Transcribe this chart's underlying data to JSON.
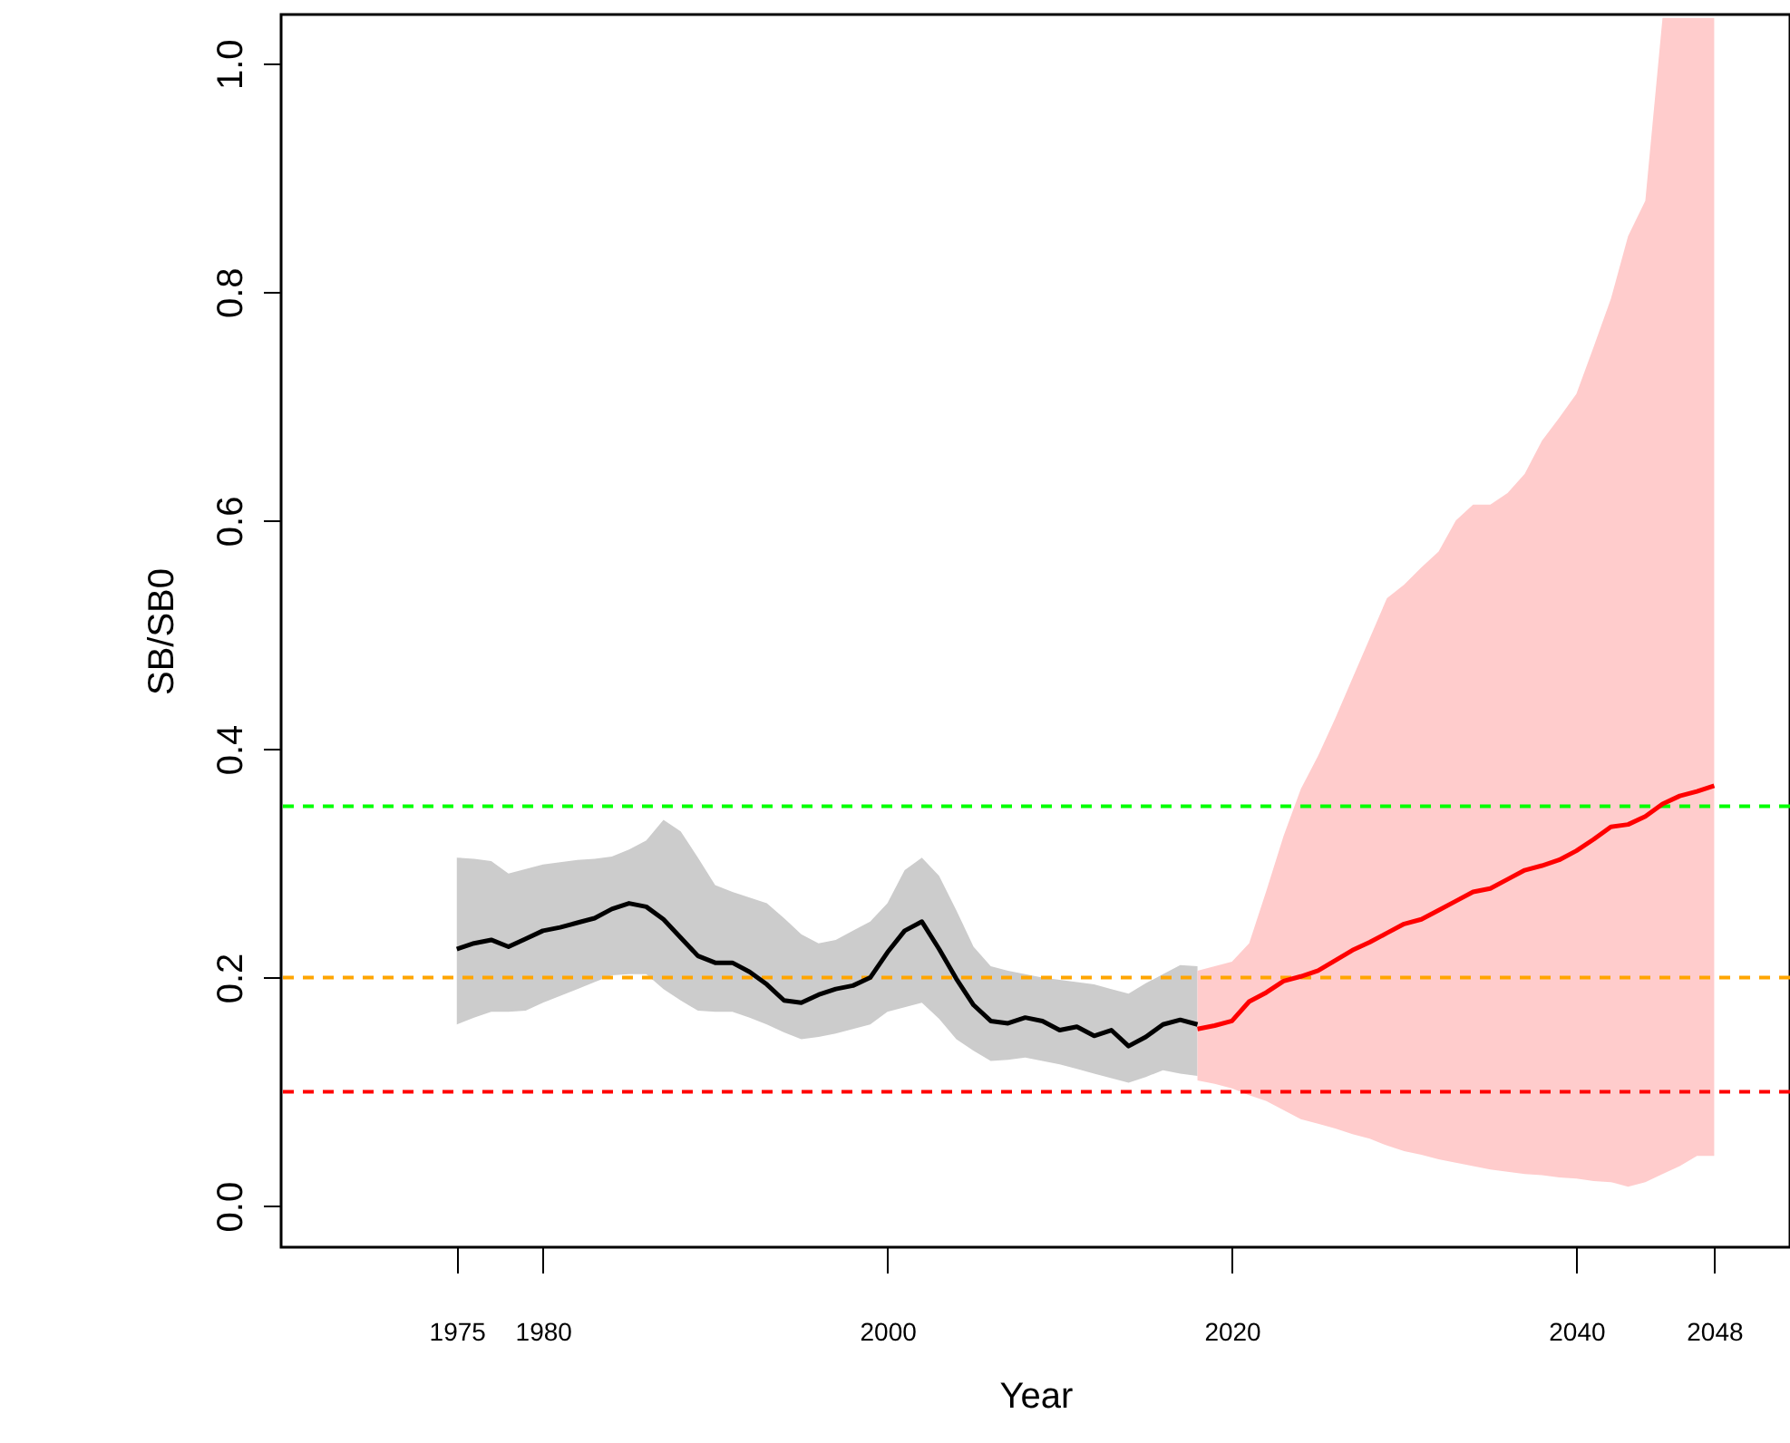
{
  "chart_data": {
    "type": "line",
    "xlabel": "Year",
    "ylabel": "SB/SB0",
    "xlim": [
      1964.8,
      2052.4
    ],
    "ylim": [
      -0.036,
      1.043
    ],
    "xticks": [
      1975,
      1980,
      2000,
      2020,
      2040,
      2048
    ],
    "yticks": [
      {
        "value": 0,
        "label": "0.0"
      },
      {
        "value": 0.2,
        "label": "0.2"
      },
      {
        "value": 0.4,
        "label": "0.4"
      },
      {
        "value": 0.6,
        "label": "0.6"
      },
      {
        "value": 0.8,
        "label": "0.8"
      },
      {
        "value": 1,
        "label": "1.0"
      }
    ],
    "grid": false,
    "line_style": "solid",
    "marker": "none",
    "series": [
      {
        "color": "#000000",
        "x": [
          1975,
          1976,
          1977,
          1978,
          1979,
          1980,
          1981,
          1982,
          1983,
          1984,
          1985,
          1986,
          1987,
          1988,
          1989,
          1990,
          1991,
          1992,
          1993,
          1994,
          1995,
          1996,
          1997,
          1998,
          1999,
          2000,
          2001,
          2002,
          2003,
          2004,
          2005,
          2006,
          2007,
          2008,
          2009,
          2010,
          2011,
          2012,
          2013,
          2014,
          2015,
          2016,
          2017,
          2018
        ],
        "values": [
          0.225,
          0.23,
          0.233,
          0.227,
          0.234,
          0.241,
          0.244,
          0.248,
          0.252,
          0.26,
          0.265,
          0.262,
          0.251,
          0.235,
          0.219,
          0.213,
          0.213,
          0.205,
          0.194,
          0.18,
          0.178,
          0.185,
          0.19,
          0.193,
          0.2,
          0.222,
          0.241,
          0.249,
          0.225,
          0.199,
          0.176,
          0.162,
          0.16,
          0.165,
          0.162,
          0.154,
          0.157,
          0.149,
          0.154,
          0.14,
          0.148,
          0.159,
          0.163,
          0.159
        ],
        "upper": [
          0.305,
          0.304,
          0.302,
          0.291,
          0.295,
          0.299,
          0.301,
          0.303,
          0.304,
          0.306,
          0.312,
          0.32,
          0.338,
          0.328,
          0.305,
          0.281,
          0.275,
          0.27,
          0.265,
          0.252,
          0.238,
          0.23,
          0.233,
          0.241,
          0.249,
          0.265,
          0.294,
          0.305,
          0.289,
          0.259,
          0.227,
          0.21,
          0.206,
          0.203,
          0.2,
          0.198,
          0.196,
          0.194,
          0.19,
          0.186,
          0.195,
          0.203,
          0.211,
          0.21
        ],
        "lower": [
          0.159,
          0.165,
          0.17,
          0.17,
          0.171,
          0.178,
          0.184,
          0.19,
          0.196,
          0.202,
          0.203,
          0.203,
          0.19,
          0.18,
          0.171,
          0.17,
          0.17,
          0.165,
          0.159,
          0.152,
          0.146,
          0.148,
          0.151,
          0.155,
          0.159,
          0.17,
          0.174,
          0.178,
          0.164,
          0.146,
          0.136,
          0.127,
          0.128,
          0.13,
          0.127,
          0.124,
          0.12,
          0.116,
          0.112,
          0.108,
          0.113,
          0.119,
          0.116,
          0.114
        ]
      },
      {
        "color": "#ff0000",
        "x": [
          2018,
          2019,
          2020,
          2021,
          2022,
          2023,
          2024,
          2025,
          2026,
          2027,
          2028,
          2029,
          2030,
          2031,
          2032,
          2033,
          2034,
          2035,
          2036,
          2037,
          2038,
          2039,
          2040,
          2041,
          2042,
          2043,
          2044,
          2045,
          2046,
          2047,
          2048
        ],
        "values": [
          0.155,
          0.158,
          0.162,
          0.179,
          0.187,
          0.197,
          0.201,
          0.206,
          0.215,
          0.224,
          0.231,
          0.239,
          0.247,
          0.251,
          0.259,
          0.267,
          0.275,
          0.278,
          0.286,
          0.294,
          0.298,
          0.303,
          0.311,
          0.321,
          0.332,
          0.334,
          0.341,
          0.352,
          0.359,
          0.363,
          0.368
        ],
        "upper": [
          0.206,
          0.21,
          0.214,
          0.23,
          0.276,
          0.324,
          0.365,
          0.394,
          0.427,
          0.462,
          0.497,
          0.532,
          0.544,
          0.559,
          0.573,
          0.6,
          0.614,
          0.614,
          0.624,
          0.641,
          0.67,
          0.69,
          0.711,
          0.752,
          0.794,
          0.849,
          0.88,
          1.04,
          1.04,
          1.04,
          1.04
        ],
        "lower": [
          0.11,
          0.107,
          0.103,
          0.097,
          0.092,
          0.084,
          0.076,
          0.072,
          0.068,
          0.063,
          0.059,
          0.053,
          0.048,
          0.045,
          0.041,
          0.038,
          0.035,
          0.032,
          0.03,
          0.028,
          0.027,
          0.025,
          0.024,
          0.022,
          0.021,
          0.017,
          0.021,
          0.028,
          0.035,
          0.044,
          0.044
        ]
      }
    ],
    "ref_lines": [
      {
        "axis": "y",
        "value": 0.35,
        "color": "#00ff00",
        "line_style": "dashed"
      },
      {
        "axis": "y",
        "value": 0.2,
        "color": "#ffa500",
        "line_style": "dashed"
      },
      {
        "axis": "y",
        "value": 0.1,
        "color": "#ff0000",
        "line_style": "dashed"
      }
    ]
  }
}
